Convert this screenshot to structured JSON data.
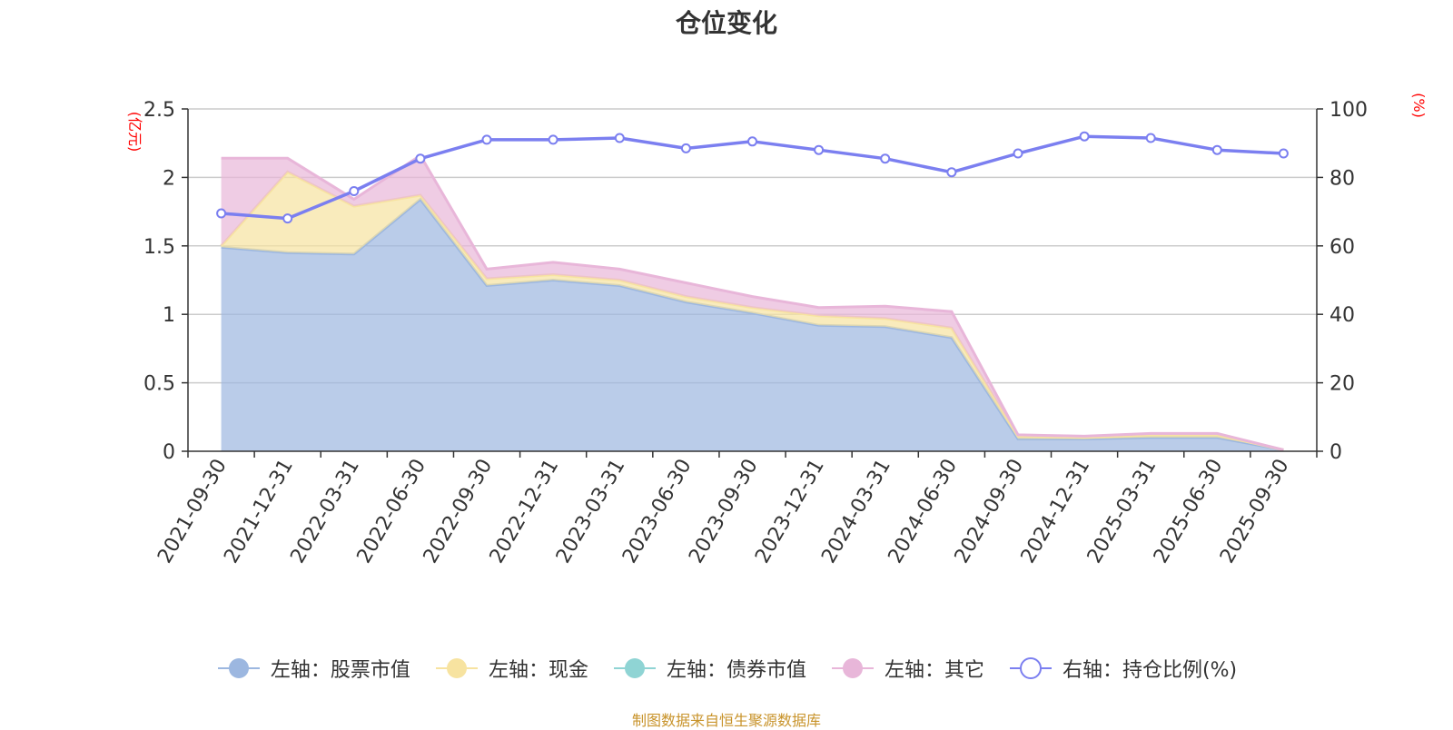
{
  "title": "仓位变化",
  "source": "制图数据来自恒生聚源数据库",
  "colors": {
    "stock": "#9cb7e0",
    "cash": "#f7e3a0",
    "bond": "#8fd4d4",
    "other": "#e8b6d9",
    "ratio": "#7b7ff0",
    "axis_unit": "#ff0000"
  },
  "legend": [
    {
      "key": "stock",
      "label": "左轴：股票市值",
      "icon": "filled-circle-icon"
    },
    {
      "key": "cash",
      "label": "左轴：现金",
      "icon": "filled-circle-icon"
    },
    {
      "key": "bond",
      "label": "左轴：债券市值",
      "icon": "filled-circle-icon"
    },
    {
      "key": "other",
      "label": "左轴：其它",
      "icon": "filled-circle-icon"
    },
    {
      "key": "ratio",
      "label": "右轴：持仓比例(%)",
      "icon": "hollow-circle-icon"
    }
  ],
  "chart_data": {
    "type": "area",
    "stacked": true,
    "categories": [
      "2021-09-30",
      "2021-12-31",
      "2022-03-31",
      "2022-06-30",
      "2022-09-30",
      "2022-12-31",
      "2023-03-31",
      "2023-06-30",
      "2023-09-30",
      "2023-12-31",
      "2024-03-31",
      "2024-06-30",
      "2024-09-30",
      "2024-12-31",
      "2025-03-31",
      "2025-06-30",
      "2025-09-30"
    ],
    "series": [
      {
        "key": "stock",
        "name": "左轴：股票市值",
        "axis": "left",
        "values": [
          1.49,
          1.45,
          1.44,
          1.84,
          1.21,
          1.25,
          1.21,
          1.09,
          1.01,
          0.92,
          0.91,
          0.83,
          0.09,
          0.09,
          0.1,
          0.1,
          0.01
        ]
      },
      {
        "key": "cash",
        "name": "左轴：现金",
        "axis": "left",
        "values": [
          0.01,
          0.59,
          0.35,
          0.03,
          0.05,
          0.04,
          0.04,
          0.04,
          0.04,
          0.07,
          0.06,
          0.07,
          0.02,
          0.01,
          0.02,
          0.02,
          0.0
        ]
      },
      {
        "key": "bond",
        "name": "左轴：债券市值",
        "axis": "left",
        "values": [
          0,
          0,
          0,
          0,
          0,
          0,
          0,
          0,
          0,
          0,
          0,
          0,
          0,
          0,
          0,
          0,
          0
        ]
      },
      {
        "key": "other",
        "name": "左轴：其它",
        "axis": "left",
        "values": [
          0.64,
          0.1,
          0.05,
          0.29,
          0.07,
          0.09,
          0.08,
          0.1,
          0.08,
          0.06,
          0.09,
          0.12,
          0.01,
          0.01,
          0.01,
          0.01,
          0.0
        ]
      },
      {
        "key": "ratio",
        "name": "右轴：持仓比例(%)",
        "axis": "right",
        "type": "line",
        "values": [
          69.5,
          68.0,
          76.0,
          85.5,
          91.0,
          91.0,
          91.5,
          88.5,
          90.5,
          88.0,
          85.5,
          81.5,
          87.0,
          92.0,
          91.5,
          88.0,
          87.0
        ]
      }
    ],
    "left_axis": {
      "unit": "(亿元)",
      "min": 0,
      "max": 2.5,
      "ticks": [
        0,
        0.5,
        1,
        1.5,
        2,
        2.5
      ],
      "tick_labels": [
        "0",
        "0.5",
        "1",
        "1.5",
        "2",
        "2.5"
      ]
    },
    "right_axis": {
      "unit": "(%)",
      "min": 0,
      "max": 100,
      "ticks": [
        0,
        20,
        40,
        60,
        80,
        100
      ],
      "tick_labels": [
        "0",
        "20",
        "40",
        "60",
        "80",
        "100"
      ]
    },
    "grid": true,
    "legend_position": "bottom"
  }
}
